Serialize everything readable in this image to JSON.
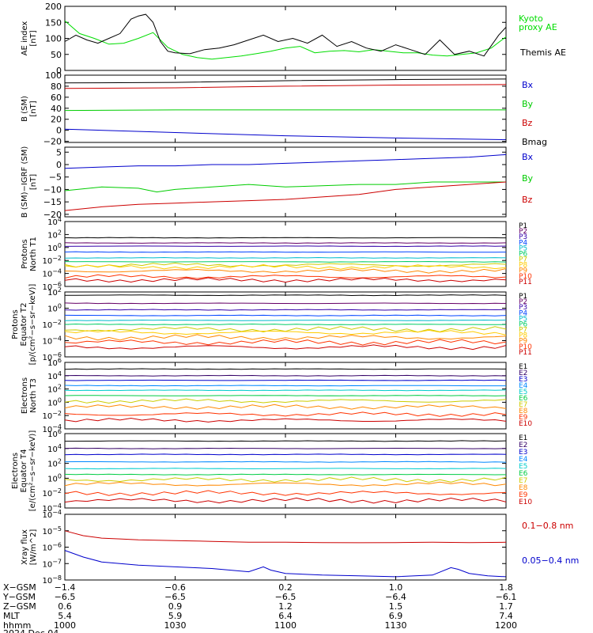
{
  "chart_data": [
    {
      "type": "line",
      "ylabel": "AE index [nT]",
      "ylim": [
        0,
        200
      ],
      "yticks": [
        "0",
        "50",
        "100",
        "150",
        "200"
      ],
      "yscale": "linear",
      "series": [
        {
          "name": "Kyoto proxy AE",
          "color": "#00dd00",
          "x": [
            1000,
            1004,
            1008,
            1012,
            1016,
            1020,
            1024,
            1028,
            1032,
            1036,
            1040,
            1044,
            1048,
            1052,
            1056,
            1100,
            1104,
            1108,
            1112,
            1116,
            1120,
            1124,
            1128,
            1132,
            1136,
            1140,
            1144,
            1148,
            1152,
            1156,
            1200
          ],
          "y": [
            155,
            115,
            100,
            82,
            85,
            100,
            118,
            72,
            50,
            40,
            35,
            40,
            45,
            52,
            60,
            70,
            75,
            55,
            60,
            62,
            58,
            65,
            60,
            55,
            55,
            48,
            45,
            50,
            55,
            70,
            105
          ]
        },
        {
          "name": "Themis AE",
          "color": "#000000",
          "x": [
            1000,
            1003,
            1006,
            1009,
            1012,
            1015,
            1018,
            1020,
            1022,
            1024,
            1026,
            1028,
            1030,
            1034,
            1038,
            1042,
            1046,
            1050,
            1054,
            1058,
            1102,
            1106,
            1110,
            1114,
            1118,
            1122,
            1126,
            1130,
            1134,
            1138,
            1142,
            1146,
            1150,
            1154,
            1158,
            1200
          ],
          "y": [
            90,
            110,
            95,
            85,
            100,
            115,
            160,
            170,
            175,
            150,
            90,
            60,
            55,
            52,
            65,
            70,
            80,
            95,
            110,
            90,
            100,
            85,
            110,
            75,
            90,
            70,
            60,
            80,
            65,
            50,
            95,
            50,
            60,
            45,
            110,
            135
          ]
        }
      ]
    },
    {
      "type": "line",
      "ylabel": "B (SM) [nT]",
      "ylim": [
        -22,
        100
      ],
      "yticks": [
        "−20",
        "0",
        "20",
        "40",
        "60",
        "80",
        "100"
      ],
      "yscale": "linear",
      "series": [
        {
          "name": "Bx",
          "color": "#0000cc",
          "x": [
            1000,
            1030,
            1100,
            1130,
            1200
          ],
          "y": [
            2,
            -4,
            -10,
            -14,
            -17
          ]
        },
        {
          "name": "By",
          "color": "#00cc00",
          "x": [
            1000,
            1030,
            1100,
            1130,
            1200
          ],
          "y": [
            36,
            37,
            37,
            37,
            37
          ]
        },
        {
          "name": "Bz",
          "color": "#cc0000",
          "x": [
            1000,
            1030,
            1100,
            1130,
            1200
          ],
          "y": [
            76,
            77,
            80,
            82,
            83
          ]
        },
        {
          "name": "Bmag",
          "color": "#000000",
          "x": [
            1000,
            1030,
            1100,
            1130,
            1200
          ],
          "y": [
            86,
            87,
            90,
            92,
            93
          ]
        }
      ]
    },
    {
      "type": "line",
      "ylabel": "B (SM)−IGRF (SM) [nT]",
      "ylim": [
        -21,
        7
      ],
      "yticks": [
        "−20",
        "−15",
        "−10",
        "−5",
        "0",
        "5"
      ],
      "yscale": "linear",
      "series": [
        {
          "name": "Bx",
          "color": "#0000cc",
          "x": [
            1000,
            1010,
            1020,
            1030,
            1040,
            1050,
            1100,
            1110,
            1120,
            1130,
            1140,
            1150,
            1200
          ],
          "y": [
            -1.5,
            -1,
            -0.5,
            -0.5,
            0,
            0,
            0.5,
            1,
            1.5,
            2,
            2.5,
            3,
            4
          ]
        },
        {
          "name": "By",
          "color": "#00cc00",
          "x": [
            1000,
            1010,
            1020,
            1025,
            1030,
            1040,
            1050,
            1100,
            1110,
            1120,
            1130,
            1140,
            1150,
            1200
          ],
          "y": [
            -10.5,
            -9,
            -9.5,
            -11,
            -10,
            -9,
            -8,
            -9,
            -8.5,
            -8,
            -8,
            -7,
            -7,
            -7
          ]
        },
        {
          "name": "Bz",
          "color": "#cc0000",
          "x": [
            1000,
            1010,
            1020,
            1030,
            1040,
            1050,
            1100,
            1110,
            1120,
            1130,
            1140,
            1150,
            1200
          ],
          "y": [
            -18.5,
            -17,
            -16,
            -15.5,
            -15,
            -14.5,
            -14,
            -13,
            -12,
            -10,
            -9,
            -8,
            -7
          ]
        }
      ]
    },
    {
      "type": "line",
      "ylabel": "Protons North T1",
      "yscale": "log",
      "ylim_exp": [
        -6,
        4
      ],
      "yticks": [
        "10^-6",
        "10^-4",
        "10^-2",
        "10^0",
        "10^2",
        "10^4"
      ],
      "series": [
        {
          "name": "P1",
          "color": "#000000",
          "level": 1.5
        },
        {
          "name": "P2",
          "color": "#660066",
          "level": 0.7
        },
        {
          "name": "P3",
          "color": "#3300aa",
          "level": 0.2
        },
        {
          "name": "P4",
          "color": "#0044ff",
          "level": -0.7
        },
        {
          "name": "P5",
          "color": "#00bbcc",
          "level": -1.6
        },
        {
          "name": "P6",
          "color": "#00cc66",
          "level": -2.2
        },
        {
          "name": "P7",
          "color": "#cccc00",
          "level": -2.7
        },
        {
          "name": "P8",
          "color": "#ffcc00",
          "level": -3.0
        },
        {
          "name": "P9",
          "color": "#ff8800",
          "level": -3.6
        },
        {
          "name": "P10",
          "color": "#ff3300",
          "level": -4.5
        },
        {
          "name": "P11",
          "color": "#cc0000",
          "level": -5.0
        }
      ]
    },
    {
      "type": "line",
      "ylabel": "Protons Equator T2 [p/(cm²−s−sr−keV)]",
      "yscale": "log",
      "ylim_exp": [
        -6,
        2
      ],
      "yticks": [
        "10^-6",
        "10^-4",
        "10^-2",
        "10^0",
        "10^2"
      ],
      "series": [
        {
          "name": "P1",
          "color": "#000000",
          "level": 1.6
        },
        {
          "name": "P2",
          "color": "#660066",
          "level": 0.6
        },
        {
          "name": "P3",
          "color": "#3300aa",
          "level": -0.2
        },
        {
          "name": "P4",
          "color": "#0044ff",
          "level": -0.9
        },
        {
          "name": "P5",
          "color": "#00bbcc",
          "level": -1.5
        },
        {
          "name": "P6",
          "color": "#00cc66",
          "level": -2.0
        },
        {
          "name": "P7",
          "color": "#cccc00",
          "level": -2.6
        },
        {
          "name": "P8",
          "color": "#ffcc00",
          "level": -3.0
        },
        {
          "name": "P9",
          "color": "#ff8800",
          "level": -3.6
        },
        {
          "name": "P10",
          "color": "#ff3300",
          "level": -4.2
        },
        {
          "name": "P11",
          "color": "#cc0000",
          "level": -4.8
        }
      ]
    },
    {
      "type": "line",
      "ylabel": "Electrons North T3",
      "yscale": "log",
      "ylim_exp": [
        -4,
        6
      ],
      "yticks": [
        "10^-4",
        "10^-2",
        "10^0",
        "10^2",
        "10^4",
        "10^6"
      ],
      "series": [
        {
          "name": "E1",
          "color": "#000000",
          "level": 5.0
        },
        {
          "name": "E2",
          "color": "#330066",
          "level": 4.0
        },
        {
          "name": "E3",
          "color": "#0000cc",
          "level": 3.3
        },
        {
          "name": "E4",
          "color": "#0088ff",
          "level": 2.5
        },
        {
          "name": "E5",
          "color": "#00cccc",
          "level": 1.8
        },
        {
          "name": "E6",
          "color": "#00cc44",
          "level": 1.0
        },
        {
          "name": "E7",
          "color": "#cccc00",
          "level": 0.2
        },
        {
          "name": "E8",
          "color": "#ff8800",
          "level": -0.7
        },
        {
          "name": "E9",
          "color": "#ff3300",
          "level": -1.8
        },
        {
          "name": "E10",
          "color": "#cc0000",
          "level": -2.7
        }
      ]
    },
    {
      "type": "line",
      "ylabel": "Electrons Equator T4 [e/(cm²−s−sr−keV)]",
      "yscale": "log",
      "ylim_exp": [
        -4,
        6
      ],
      "yticks": [
        "10^-4",
        "10^-2",
        "10^0",
        "10^2",
        "10^4",
        "10^6"
      ],
      "series": [
        {
          "name": "E1",
          "color": "#000000",
          "level": 5.0
        },
        {
          "name": "E2",
          "color": "#330066",
          "level": 4.0
        },
        {
          "name": "E3",
          "color": "#0000cc",
          "level": 3.2
        },
        {
          "name": "E4",
          "color": "#0088ff",
          "level": 2.2
        },
        {
          "name": "E5",
          "color": "#00cccc",
          "level": 1.3
        },
        {
          "name": "E6",
          "color": "#00cc44",
          "level": 0.5
        },
        {
          "name": "E7",
          "color": "#cccc00",
          "level": -0.2
        },
        {
          "name": "E8",
          "color": "#ff8800",
          "level": -0.8
        },
        {
          "name": "E9",
          "color": "#ff3300",
          "level": -2.0
        },
        {
          "name": "E10",
          "color": "#cc0000",
          "level": -3.0
        }
      ]
    },
    {
      "type": "line",
      "ylabel": "Xray flux [W/m^2]",
      "yscale": "log",
      "ylim_exp": [
        -8,
        -4
      ],
      "yticks": [
        "10^-8",
        "10^-7",
        "10^-6",
        "10^-5",
        "10^-4"
      ],
      "series": [
        {
          "name": "0.1−0.8 nm",
          "color": "#cc0000",
          "x": [
            1000,
            1005,
            1010,
            1015,
            1020,
            1030,
            1040,
            1050,
            1100,
            1110,
            1120,
            1130,
            1140,
            1150,
            1200
          ],
          "y": [
            -5.0,
            -5.3,
            -5.45,
            -5.5,
            -5.55,
            -5.6,
            -5.65,
            -5.7,
            -5.7,
            -5.72,
            -5.73,
            -5.72,
            -5.7,
            -5.72,
            -5.7
          ]
        },
        {
          "name": "0.05−0.4 nm",
          "color": "#0000cc",
          "x": [
            1000,
            1005,
            1010,
            1015,
            1020,
            1030,
            1040,
            1050,
            1054,
            1056,
            1100,
            1110,
            1120,
            1130,
            1140,
            1145,
            1147,
            1150,
            1155,
            1200
          ],
          "y": [
            -6.2,
            -6.6,
            -6.9,
            -7.0,
            -7.1,
            -7.2,
            -7.3,
            -7.5,
            -7.2,
            -7.4,
            -7.6,
            -7.7,
            -7.75,
            -7.8,
            -7.7,
            -7.25,
            -7.35,
            -7.6,
            -7.75,
            -7.8
          ]
        }
      ]
    }
  ],
  "xaxis": {
    "rows": [
      {
        "label": "X−GSM",
        "values": [
          "−1.4",
          "−0.6",
          "0.2",
          "1.0",
          "1.8"
        ]
      },
      {
        "label": "Y−GSM",
        "values": [
          "−6.5",
          "−6.5",
          "−6.5",
          "−6.4",
          "−6.1"
        ]
      },
      {
        "label": "Z−GSM",
        "values": [
          "0.6",
          "0.9",
          "1.2",
          "1.5",
          "1.7"
        ]
      },
      {
        "label": "MLT",
        "values": [
          "5.4",
          "5.9",
          "6.4",
          "6.9",
          "7.4"
        ]
      },
      {
        "label": "hhmm",
        "values": [
          "1000",
          "1030",
          "1100",
          "1130",
          "1200"
        ]
      }
    ],
    "date": "2024 Dec 04",
    "xlim": [
      1000,
      1200
    ]
  }
}
